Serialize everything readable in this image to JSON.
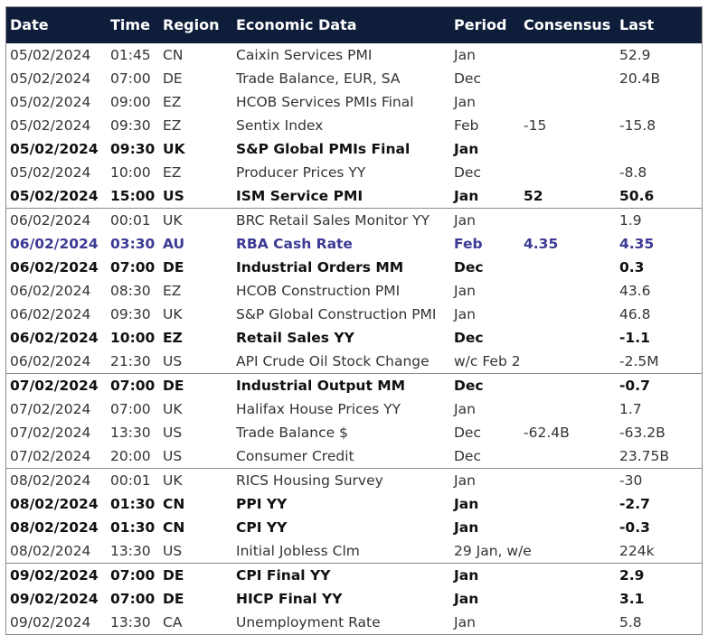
{
  "header": [
    "Date",
    "Time",
    "Region",
    "Economic Data",
    "Period",
    "Consensus",
    "Last"
  ],
  "rows": [
    {
      "cells": [
        "05/02/2024",
        "01:45",
        "CN",
        "Caixin Services PMI",
        "Jan",
        null,
        "52.9"
      ]
    },
    {
      "cells": [
        "05/02/2024",
        "07:00",
        "DE",
        "Trade Balance, EUR, SA",
        "Dec",
        null,
        "20.4B"
      ]
    },
    {
      "cells": [
        "05/02/2024",
        "09:00",
        "EZ",
        "HCOB Services PMIs Final",
        "Jan",
        null,
        null
      ]
    },
    {
      "cells": [
        "05/02/2024",
        "09:30",
        "EZ",
        "Sentix Index",
        "Feb",
        "-15",
        "-15.8"
      ]
    },
    {
      "cells": [
        "05/02/2024",
        "09:30",
        "UK",
        "S&P Global PMIs Final",
        "Jan",
        null,
        null
      ],
      "bold": true
    },
    {
      "cells": [
        "05/02/2024",
        "10:00",
        "EZ",
        "Producer Prices YY",
        "Dec",
        null,
        "-8.8"
      ]
    },
    {
      "cells": [
        "05/02/2024",
        "15:00",
        "US",
        "ISM Service PMI",
        "Jan",
        "52",
        "50.6"
      ],
      "bold": true
    },
    {
      "cells": [
        "06/02/2024",
        "00:01",
        "UK",
        "BRC Retail Sales Monitor YY",
        "Jan",
        null,
        "1.9"
      ]
    },
    {
      "cells": [
        "06/02/2024",
        "03:30",
        "AU",
        "RBA Cash Rate",
        "Feb",
        "4.35",
        "4.35"
      ],
      "bold": true,
      "color": "#3b3a95"
    },
    {
      "cells": [
        "06/02/2024",
        "07:00",
        "DE",
        "Industrial Orders MM",
        "Dec",
        null,
        "0.3"
      ],
      "bold": true
    },
    {
      "cells": [
        "06/02/2024",
        "08:30",
        "EZ",
        "HCOB Construction PMI",
        "Jan",
        null,
        "43.6"
      ]
    },
    {
      "cells": [
        "06/02/2024",
        "09:30",
        "UK",
        "S&P Global Construction PMI",
        "Jan",
        null,
        "46.8"
      ]
    },
    {
      "cells": [
        "06/02/2024",
        "10:00",
        "EZ",
        "Retail Sales YY",
        "Dec",
        null,
        "-1.1"
      ],
      "bold": true
    },
    {
      "cells": [
        "06/02/2024",
        "21:30",
        "US",
        "API Crude Oil Stock Change",
        "w/c Feb 2",
        null,
        "-2.5M"
      ]
    },
    {
      "cells": [
        "07/02/2024",
        "07:00",
        "DE",
        "Industrial Output MM",
        "Dec",
        null,
        "-0.7"
      ],
      "bold": true
    },
    {
      "cells": [
        "07/02/2024",
        "07:00",
        "UK",
        "Halifax House Prices YY",
        "Jan",
        null,
        "1.7"
      ]
    },
    {
      "cells": [
        "07/02/2024",
        "13:30",
        "US",
        "Trade Balance $",
        "Dec",
        "-62.4B",
        "-63.2B"
      ]
    },
    {
      "cells": [
        "07/02/2024",
        "20:00",
        "US",
        "Consumer Credit",
        "Dec",
        null,
        "23.75B"
      ]
    },
    {
      "cells": [
        "08/02/2024",
        "00:01",
        "UK",
        "RICS Housing Survey",
        "Jan",
        null,
        "-30"
      ]
    },
    {
      "cells": [
        "08/02/2024",
        "01:30",
        "CN",
        "PPI YY",
        "Jan",
        null,
        "-2.7"
      ],
      "bold": true
    },
    {
      "cells": [
        "08/02/2024",
        "01:30",
        "CN",
        "CPI YY",
        "Jan",
        null,
        "-0.3"
      ],
      "bold": true
    },
    {
      "cells": [
        "08/02/2024",
        "13:30",
        "US",
        "Initial Jobless Clm",
        "29 Jan, w/e",
        null,
        "224k"
      ]
    },
    {
      "cells": [
        "09/02/2024",
        "07:00",
        "DE",
        "CPI Final YY",
        "Jan",
        null,
        "2.9"
      ],
      "bold": true
    },
    {
      "cells": [
        "09/02/2024",
        "07:00",
        "DE",
        "HICP Final YY",
        "Jan",
        null,
        "3.1"
      ],
      "bold": true
    },
    {
      "cells": [
        "09/02/2024",
        "13:30",
        "CA",
        "Unemployment Rate",
        "Jan",
        null,
        "5.8"
      ]
    }
  ]
}
